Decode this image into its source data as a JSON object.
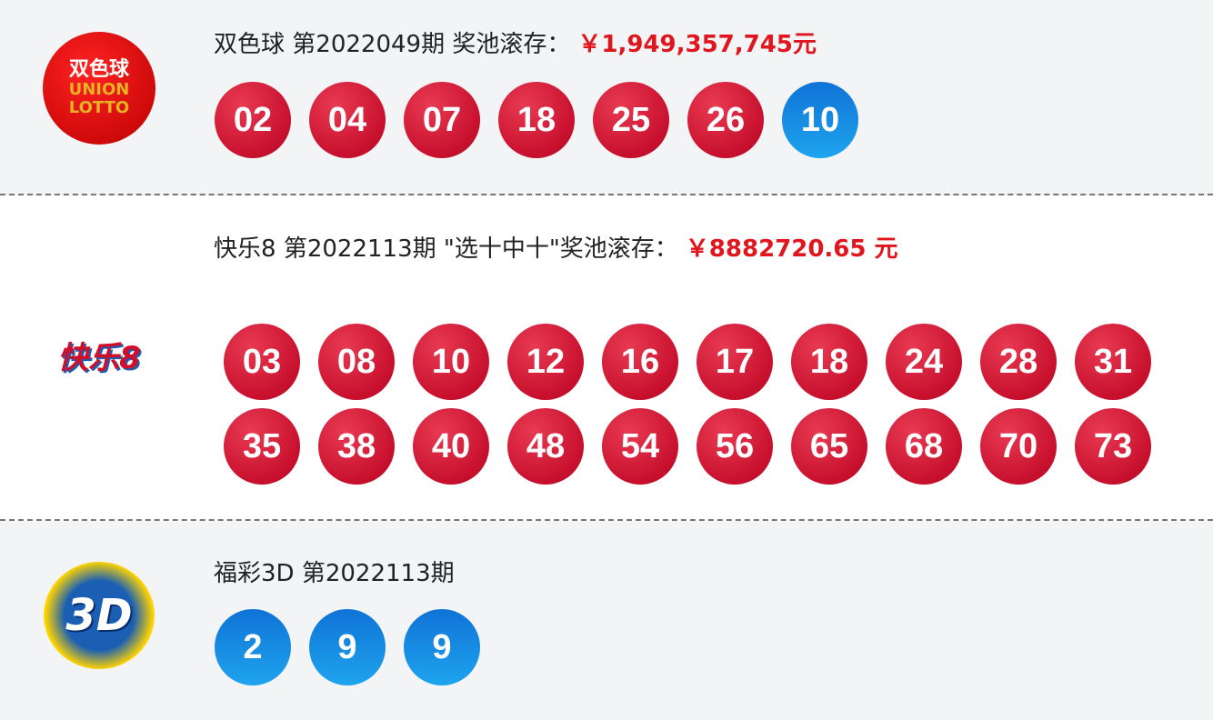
{
  "ssq": {
    "name": "双色球",
    "issue": "第2022049期",
    "pool_label": "奖池滚存：",
    "pool": "￥1,949,357,745元",
    "logo_text": "双色球 UNION LOTTO",
    "red": [
      "02",
      "04",
      "07",
      "18",
      "25",
      "26"
    ],
    "blue": [
      "10"
    ]
  },
  "kl8": {
    "name": "快乐8",
    "issue": "第2022113期",
    "pool_label": "\"选十中十\"奖池滚存：",
    "pool": "￥8882720.65 元",
    "logo_text": "快乐8",
    "numbers": [
      "03",
      "08",
      "10",
      "12",
      "16",
      "17",
      "18",
      "24",
      "28",
      "31",
      "35",
      "38",
      "40",
      "48",
      "54",
      "56",
      "65",
      "68",
      "70",
      "73"
    ]
  },
  "fc3d": {
    "name": "福彩3D",
    "issue": "第2022113期",
    "logo_text": "3D",
    "numbers": [
      "2",
      "9",
      "9"
    ]
  },
  "colors": {
    "red": "#c8102e",
    "blue": "#1a8ce0",
    "pool": "#e0161e"
  }
}
